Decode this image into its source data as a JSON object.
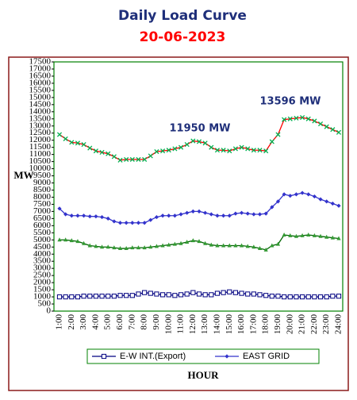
{
  "chart_data": {
    "type": "line",
    "title": "Daily Load Curve",
    "subtitle": "20-06-2023",
    "x_label": "HOUR",
    "y_label": "MW",
    "annotations": [
      "11950 MW",
      "13596 MW"
    ],
    "categories": [
      "1:00",
      null,
      "2:00",
      null,
      "3:00",
      null,
      "4:00",
      null,
      "5:00",
      null,
      "6:00",
      null,
      "7:00",
      null,
      "8:00",
      null,
      "9:00",
      null,
      "10:00",
      null,
      "11:00",
      null,
      "12:00",
      null,
      "13:00",
      null,
      "14:00",
      null,
      "15:00",
      null,
      "16:00",
      null,
      "17:00",
      null,
      "18:00",
      null,
      "19:00",
      null,
      "20:00",
      null,
      "21:00",
      null,
      "22:00",
      null,
      "23:00",
      null,
      "24:00"
    ],
    "ylim": [
      0,
      17500
    ],
    "yticks": [
      0,
      500,
      1000,
      1500,
      2000,
      2500,
      3000,
      3500,
      4000,
      4500,
      5000,
      5500,
      6000,
      6500,
      7000,
      7500,
      8000,
      8500,
      9000,
      9500,
      10000,
      10500,
      11000,
      11500,
      12000,
      12500,
      13000,
      13500,
      14000,
      14500,
      15000,
      15500,
      16000,
      16500,
      17000,
      17500
    ],
    "legend": "bottom",
    "series": [
      {
        "color": "#ff0000",
        "marker": "x",
        "marker_color": "#00b050",
        "values": [
          12400,
          12100,
          11850,
          11800,
          11700,
          11450,
          11250,
          11150,
          11050,
          10850,
          10600,
          10650,
          10650,
          10650,
          10650,
          10900,
          11200,
          11250,
          11300,
          11400,
          11500,
          11700,
          11950,
          11900,
          11800,
          11500,
          11300,
          11300,
          11250,
          11400,
          11500,
          11400,
          11300,
          11300,
          11250,
          11900,
          12400,
          13450,
          13500,
          13550,
          13596,
          13500,
          13350,
          13150,
          12950,
          12750,
          12550
        ]
      },
      {
        "name": "EAST GRID",
        "color": "#3333cc",
        "marker": "diamond",
        "marker_color": "#3333cc",
        "values": [
          7200,
          6800,
          6700,
          6700,
          6700,
          6650,
          6650,
          6600,
          6500,
          6300,
          6200,
          6200,
          6200,
          6200,
          6200,
          6400,
          6600,
          6700,
          6700,
          6700,
          6800,
          6900,
          7000,
          7000,
          6900,
          6800,
          6700,
          6700,
          6700,
          6850,
          6900,
          6850,
          6800,
          6800,
          6850,
          7300,
          7700,
          8200,
          8100,
          8200,
          8300,
          8200,
          8050,
          7850,
          7700,
          7550,
          7400
        ]
      },
      {
        "color": "#006600",
        "marker": "triangle",
        "marker_color": "#339933",
        "values": [
          5000,
          5000,
          4950,
          4900,
          4750,
          4600,
          4550,
          4500,
          4500,
          4450,
          4400,
          4400,
          4450,
          4450,
          4450,
          4500,
          4550,
          4600,
          4650,
          4700,
          4750,
          4850,
          4950,
          4900,
          4750,
          4650,
          4600,
          4600,
          4600,
          4600,
          4600,
          4550,
          4500,
          4400,
          4300,
          4600,
          4700,
          5350,
          5300,
          5250,
          5300,
          5350,
          5300,
          5250,
          5200,
          5150,
          5100
        ]
      },
      {
        "name": "E-W INT.(Export)",
        "color": "#000080",
        "marker": "square",
        "marker_color": "#000080",
        "values": [
          1000,
          1000,
          1000,
          1000,
          1050,
          1050,
          1050,
          1050,
          1050,
          1050,
          1100,
          1100,
          1100,
          1200,
          1300,
          1250,
          1200,
          1150,
          1150,
          1100,
          1150,
          1200,
          1300,
          1200,
          1150,
          1150,
          1250,
          1300,
          1350,
          1300,
          1250,
          1200,
          1200,
          1150,
          1100,
          1050,
          1050,
          1000,
          1000,
          1000,
          1000,
          1000,
          1000,
          1000,
          1000,
          1050,
          1050
        ]
      }
    ]
  }
}
